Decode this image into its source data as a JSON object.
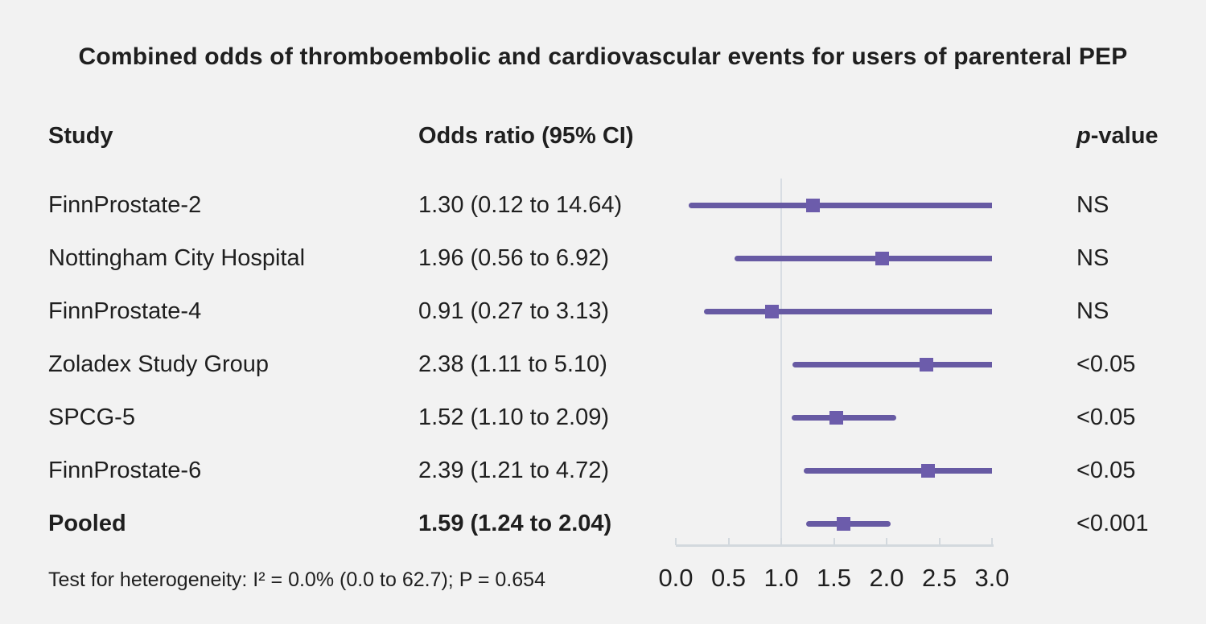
{
  "title": "Combined odds of thromboembolic and cardiovascular events for users of parenteral PEP",
  "columns": {
    "study": "Study",
    "odds_ratio": "Odds ratio (95% CI)",
    "p_value_italic": "p",
    "p_value_rest": "-value"
  },
  "footer": "Test for heterogeneity: I² = 0.0% (0.0 to 62.7); P = 0.654",
  "colors": {
    "background": "#f2f2f2",
    "ci_line": "#675aa3",
    "marker": "#6c5cab",
    "reference_line": "#d8dde3",
    "axis": "#d3d9de",
    "text": "#1f1f1f"
  },
  "chart_data": {
    "type": "scatter",
    "subtype": "forest-plot",
    "title": "Combined odds of thromboembolic and cardiovascular events for users of parenteral PEP",
    "xlabel": "",
    "ylabel": "",
    "xlim": [
      0.0,
      3.0
    ],
    "x_ticks": [
      "0.0",
      "0.5",
      "1.0",
      "1.5",
      "2.0",
      "2.5",
      "3.0"
    ],
    "reference_line_x": 1.0,
    "grid": false,
    "legend": false,
    "marker_shape": "square",
    "annotation": "Test for heterogeneity: I² = 0.0% (0.0 to 62.7); P = 0.654",
    "rows": [
      {
        "study": "FinnProstate-2",
        "or": 1.3,
        "ci_low": 0.12,
        "ci_high": 14.64,
        "or_label": "1.30 (0.12 to 14.64)",
        "p_value": "NS",
        "bold": false
      },
      {
        "study": "Nottingham City Hospital",
        "or": 1.96,
        "ci_low": 0.56,
        "ci_high": 6.92,
        "or_label": "1.96 (0.56 to 6.92)",
        "p_value": "NS",
        "bold": false
      },
      {
        "study": "FinnProstate-4",
        "or": 0.91,
        "ci_low": 0.27,
        "ci_high": 3.13,
        "or_label": "0.91 (0.27 to 3.13)",
        "p_value": "NS",
        "bold": false
      },
      {
        "study": "Zoladex Study Group",
        "or": 2.38,
        "ci_low": 1.11,
        "ci_high": 5.1,
        "or_label": "2.38 (1.11 to 5.10)",
        "p_value": "<0.05",
        "bold": false
      },
      {
        "study": "SPCG-5",
        "or": 1.52,
        "ci_low": 1.1,
        "ci_high": 2.09,
        "or_label": "1.52 (1.10 to 2.09)",
        "p_value": "<0.05",
        "bold": false
      },
      {
        "study": "FinnProstate-6",
        "or": 2.39,
        "ci_low": 1.21,
        "ci_high": 4.72,
        "or_label": "2.39 (1.21 to 4.72)",
        "p_value": "<0.05",
        "bold": false
      },
      {
        "study": "Pooled",
        "or": 1.59,
        "ci_low": 1.24,
        "ci_high": 2.04,
        "or_label": "1.59 (1.24 to 2.04)",
        "p_value": "<0.001",
        "bold": true
      }
    ]
  }
}
